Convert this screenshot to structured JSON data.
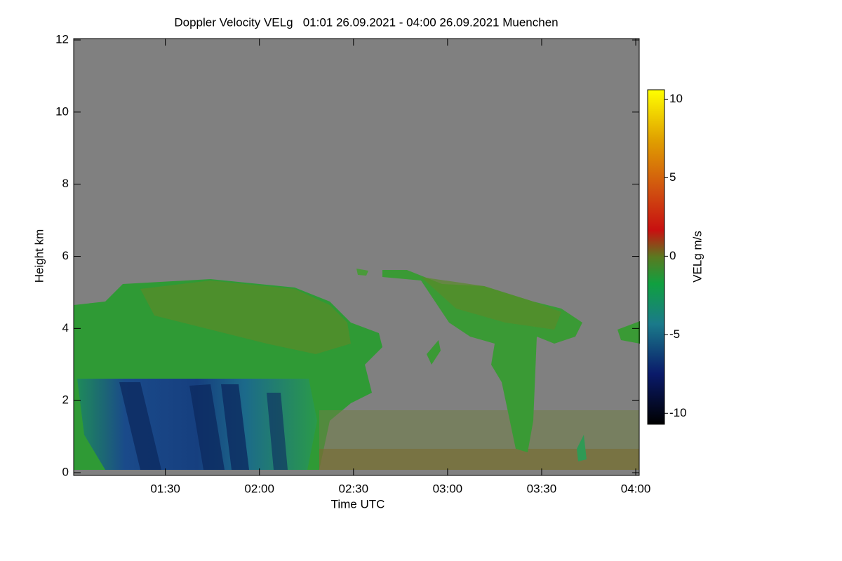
{
  "chart_data": {
    "type": "heatmap",
    "title": "Doppler Velocity VELg   01:01 26.09.2021 - 04:00 26.09.2021 Muenchen",
    "xlabel": "Time UTC",
    "ylabel": "Height km",
    "xlim": [
      61,
      241
    ],
    "xticks": [
      {
        "value": 90,
        "label": "01:30"
      },
      {
        "value": 120,
        "label": "02:00"
      },
      {
        "value": 150,
        "label": "02:30"
      },
      {
        "value": 180,
        "label": "03:00"
      },
      {
        "value": 210,
        "label": "03:30"
      },
      {
        "value": 240,
        "label": "04:00"
      }
    ],
    "ylim": [
      0,
      12
    ],
    "yticks": [
      0,
      2,
      4,
      6,
      8,
      10,
      12
    ],
    "colorbar": {
      "label": "VELg m/s",
      "lim": [
        -10.7,
        10.6
      ],
      "ticks": [
        -10,
        -5,
        0,
        5,
        10
      ]
    }
  }
}
